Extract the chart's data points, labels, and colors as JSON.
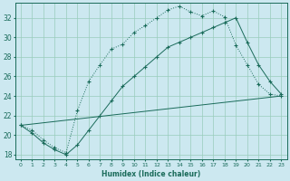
{
  "xlabel": "Humidex (Indice chaleur)",
  "bg_color": "#cce8f0",
  "grid_color": "#99ccbb",
  "line_color": "#1a6b5a",
  "xlim": [
    -0.5,
    23.5
  ],
  "ylim": [
    17.5,
    33.5
  ],
  "xticks": [
    0,
    1,
    2,
    3,
    4,
    5,
    6,
    7,
    8,
    9,
    10,
    11,
    12,
    13,
    14,
    15,
    16,
    17,
    18,
    19,
    20,
    21,
    22,
    23
  ],
  "yticks": [
    18,
    20,
    22,
    24,
    26,
    28,
    30,
    32
  ],
  "line1_x": [
    0,
    1,
    2,
    3,
    4,
    5,
    6,
    7,
    8,
    9,
    10,
    11,
    12,
    13,
    14,
    15,
    16,
    17,
    18,
    19,
    20,
    21,
    22,
    23
  ],
  "line1_y": [
    21.0,
    20.5,
    19.5,
    18.7,
    18.2,
    22.5,
    25.5,
    27.2,
    28.8,
    29.3,
    30.5,
    31.2,
    32.0,
    32.8,
    33.2,
    32.6,
    32.2,
    32.7,
    32.1,
    29.2,
    27.2,
    25.2,
    24.2,
    24.0
  ],
  "line2_x": [
    0,
    1,
    2,
    3,
    4,
    5,
    6,
    7,
    8,
    9,
    10,
    11,
    12,
    13,
    14,
    15,
    16,
    17,
    18,
    19,
    20,
    21,
    22,
    23
  ],
  "line2_y": [
    21.0,
    20.2,
    19.2,
    18.5,
    18.0,
    19.0,
    20.5,
    22.0,
    23.5,
    25.0,
    26.0,
    27.0,
    28.0,
    29.0,
    29.5,
    30.0,
    30.5,
    31.0,
    31.5,
    32.0,
    29.5,
    27.2,
    25.5,
    24.2
  ],
  "line3_x": [
    0,
    23
  ],
  "line3_y": [
    21.0,
    24.0
  ]
}
